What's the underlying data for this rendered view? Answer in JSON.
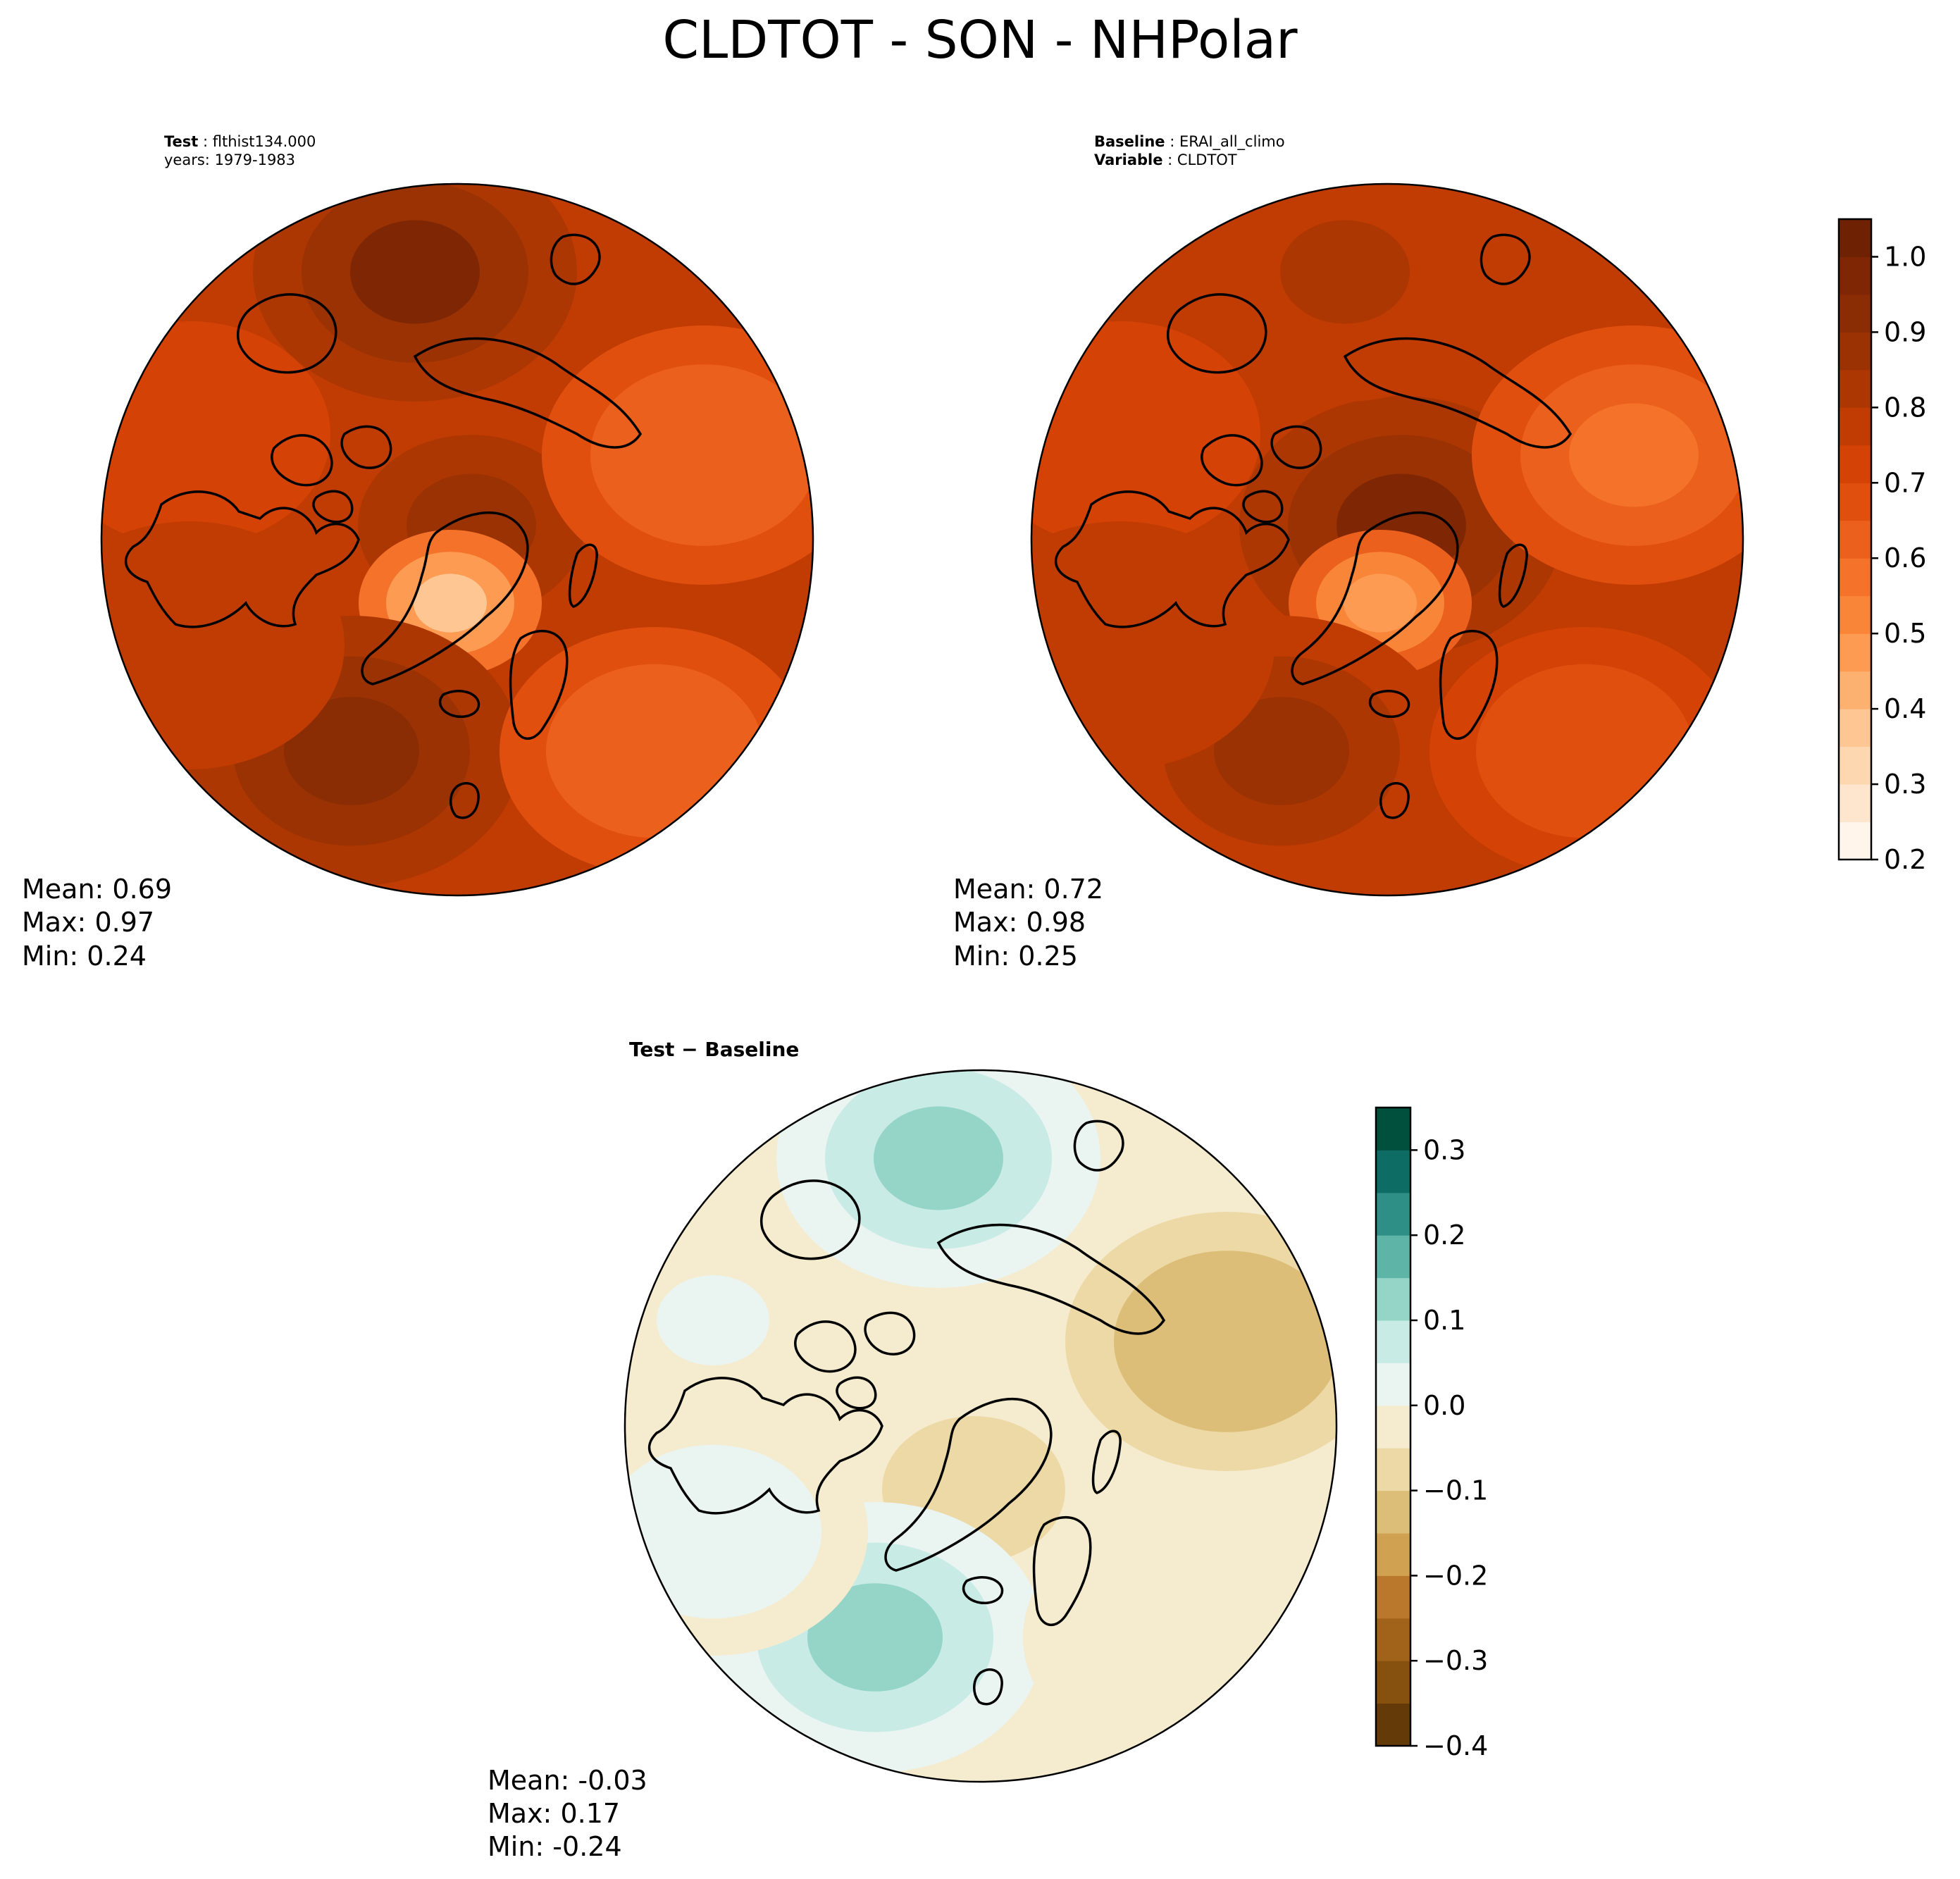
{
  "figure": {
    "title": "CLDTOT - SON - NHPolar"
  },
  "chart_data": [
    {
      "type": "heatmap",
      "id": "test",
      "projection": "north polar stereographic",
      "header": [
        {
          "key": "Test",
          "value": "flthist134.000"
        },
        {
          "key": "years",
          "value": "1979-1983"
        }
      ],
      "stats": {
        "mean": "Mean:  0.69",
        "max": "Max:  0.97",
        "min": "Min:  0.24"
      },
      "colormap": "Oranges",
      "field_samples": {
        "pole": 0.85,
        "greenland": 0.35,
        "north_atlantic": 0.9,
        "north_pacific": 0.95,
        "siberia": 0.6,
        "alaska": 0.7,
        "europe": 0.6,
        "canada": 0.75
      }
    },
    {
      "type": "heatmap",
      "id": "baseline",
      "projection": "north polar stereographic",
      "header": [
        {
          "key": "Baseline",
          "value": "ERAI_all_climo"
        },
        {
          "key": "Variable",
          "value": "CLDTOT"
        }
      ],
      "stats": {
        "mean": "Mean:  0.72",
        "max": "Max:  0.98",
        "min": "Min:  0.25"
      },
      "colormap": "Oranges",
      "field_samples": {
        "pole": 0.95,
        "greenland": 0.45,
        "north_atlantic": 0.85,
        "north_pacific": 0.8,
        "siberia": 0.55,
        "alaska": 0.7,
        "europe": 0.65,
        "canada": 0.75
      },
      "colorbar": {
        "range": [
          0.2,
          1.05
        ],
        "ticks": [
          0.2,
          0.3,
          0.4,
          0.5,
          0.6,
          0.7,
          0.8,
          0.9,
          1.0
        ],
        "tick_labels": [
          "0.2",
          "0.3",
          "0.4",
          "0.5",
          "0.6",
          "0.7",
          "0.8",
          "0.9",
          "1.0"
        ],
        "levels": [
          0.2,
          0.25,
          0.3,
          0.35,
          0.4,
          0.45,
          0.5,
          0.55,
          0.6,
          0.65,
          0.7,
          0.75,
          0.8,
          0.85,
          0.9,
          0.95,
          1.0,
          1.05
        ],
        "colors": [
          "#fff5eb",
          "#fee6ce",
          "#fdd7b0",
          "#fdc692",
          "#fdb171",
          "#fd9b52",
          "#f98638",
          "#f4722a",
          "#eb601c",
          "#e14f0f",
          "#d44305",
          "#c13c03",
          "#ad3702",
          "#9a3203",
          "#8a2d04",
          "#7f2704",
          "#6e2203"
        ]
      }
    },
    {
      "type": "heatmap",
      "id": "difference",
      "projection": "north polar stereographic",
      "header": [
        {
          "key": "Test − Baseline",
          "value": ""
        }
      ],
      "stats": {
        "mean": "Mean: -0.03",
        "max": "Max:  0.17",
        "min": "Min: -0.24"
      },
      "colormap": "BrBG",
      "field_samples": {
        "pole": -0.05,
        "greenland": -0.1,
        "north_atlantic": 0.1,
        "north_pacific": 0.12,
        "siberia": -0.15,
        "alaska": 0.0,
        "europe": -0.05,
        "canada": 0.02
      },
      "colorbar": {
        "range": [
          -0.4,
          0.35
        ],
        "ticks": [
          -0.4,
          -0.3,
          -0.2,
          -0.1,
          0.0,
          0.1,
          0.2,
          0.3
        ],
        "tick_labels": [
          "−0.4",
          "−0.3",
          "−0.2",
          "−0.1",
          "0.0",
          "0.1",
          "0.2",
          "0.3"
        ],
        "levels": [
          -0.4,
          -0.35,
          -0.3,
          -0.25,
          -0.2,
          -0.15,
          -0.1,
          -0.05,
          0.0,
          0.05,
          0.1,
          0.15,
          0.2,
          0.25,
          0.3,
          0.35
        ],
        "colors": [
          "#653a09",
          "#86510f",
          "#a06319",
          "#b9782c",
          "#d0a150",
          "#dcbe79",
          "#edd9a5",
          "#f5ebcf",
          "#eaf4f1",
          "#c8ebe5",
          "#94d5c7",
          "#5fb4a8",
          "#2d8f86",
          "#0d6d64",
          "#01503e"
        ]
      }
    }
  ]
}
